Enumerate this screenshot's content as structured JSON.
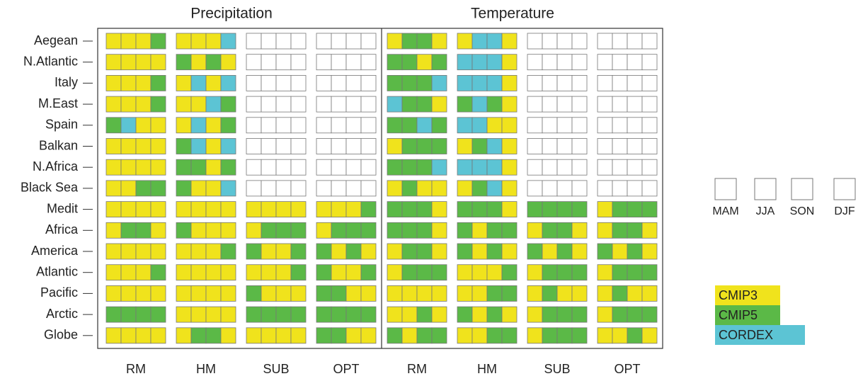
{
  "chart_data": {
    "type": "categorical-grid",
    "panels": [
      "Precipitation",
      "Temperature"
    ],
    "metrics": [
      "RM",
      "HM",
      "SUB",
      "OPT"
    ],
    "regions": [
      "Aegean",
      "N.Atlantic",
      "Italy",
      "M.East",
      "Spain",
      "Balkan",
      "N.Africa",
      "Black Sea",
      "Medit",
      "Africa",
      "America",
      "Atlantic",
      "Pacific",
      "Arctic",
      "Globe"
    ],
    "seasons": [
      "MAM",
      "JJA",
      "SON",
      "DJF"
    ],
    "legend": [
      {
        "code": "Y",
        "name": "CMIP3",
        "color": "#f0e31c"
      },
      {
        "code": "G",
        "name": "CMIP5",
        "color": "#5bb947"
      },
      {
        "code": "C",
        "name": "CORDEX",
        "color": "#5cc4d4"
      }
    ],
    "empty": {
      "code": "W",
      "color": "#ffffff"
    },
    "cells": [
      [
        "YYYG",
        "YYYC",
        "WWWW",
        "WWWW",
        "YGGY",
        "YCCY",
        "WWWW",
        "WWWW"
      ],
      [
        "YYYY",
        "GYGY",
        "WWWW",
        "WWWW",
        "GGYG",
        "CCCY",
        "WWWW",
        "WWWW"
      ],
      [
        "YYYG",
        "YCYC",
        "WWWW",
        "WWWW",
        "GGGC",
        "CCCY",
        "WWWW",
        "WWWW"
      ],
      [
        "YYYG",
        "YYCG",
        "WWWW",
        "WWWW",
        "CGGY",
        "GCGY",
        "WWWW",
        "WWWW"
      ],
      [
        "GCYY",
        "YCYG",
        "WWWW",
        "WWWW",
        "GGCG",
        "CCYY",
        "WWWW",
        "WWWW"
      ],
      [
        "YYYY",
        "GCYC",
        "WWWW",
        "WWWW",
        "YGGG",
        "YGCY",
        "WWWW",
        "WWWW"
      ],
      [
        "YYYY",
        "GGYG",
        "WWWW",
        "WWWW",
        "GGGC",
        "CCCY",
        "WWWW",
        "WWWW"
      ],
      [
        "YYGG",
        "GYYC",
        "WWWW",
        "WWWW",
        "YGYY",
        "YGCY",
        "WWWW",
        "WWWW"
      ],
      [
        "YYYY",
        "YYYY",
        "YYYY",
        "YYYG",
        "GGGY",
        "GGGY",
        "GGGG",
        "YGGG"
      ],
      [
        "YGGY",
        "GYYY",
        "YGGG",
        "YGGG",
        "GGGY",
        "GYGG",
        "YGGY",
        "YGGY"
      ],
      [
        "YYYY",
        "YYYG",
        "GYYG",
        "GYGY",
        "YGGY",
        "GYGY",
        "GYGY",
        "GYGY"
      ],
      [
        "YYYG",
        "YYYY",
        "YYYG",
        "GYYG",
        "YGGG",
        "YYYG",
        "YGGG",
        "YGGG"
      ],
      [
        "YYYY",
        "YYYY",
        "GYYY",
        "GGYY",
        "YYYY",
        "YYGG",
        "YGYY",
        "YGYY"
      ],
      [
        "GGGG",
        "YYYY",
        "GGGG",
        "GGGG",
        "YYGY",
        "GYGY",
        "YGGG",
        "YGGG"
      ],
      [
        "YYYY",
        "YGGY",
        "YYYY",
        "GGYY",
        "GYGG",
        "YYGG",
        "YGGG",
        "YYGY"
      ]
    ]
  }
}
